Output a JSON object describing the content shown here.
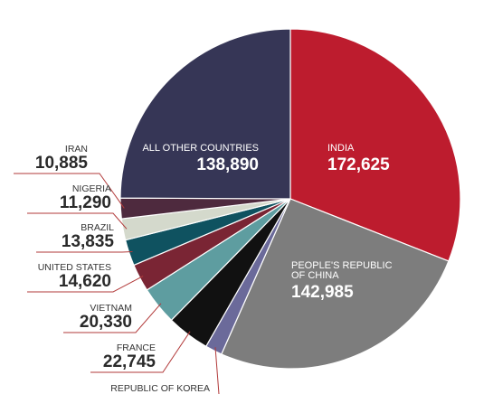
{
  "chart_data": {
    "type": "pie",
    "title": "",
    "slices": [
      {
        "label": "INDIA",
        "value": 172625,
        "display": "172,625",
        "color": "#bd1c2e"
      },
      {
        "label": "PEOPLE'S REPUBLIC OF CHINA",
        "label_lines": [
          "PEOPLE'S REPUBLIC",
          "OF CHINA"
        ],
        "value": 142985,
        "display": "142,985",
        "color": "#7d7d7d"
      },
      {
        "label": "REPUBLIC OF KOREA",
        "value": 0,
        "display": "",
        "color": "#6b6a9a"
      },
      {
        "label": "FRANCE",
        "value": 22745,
        "display": "22,745",
        "color": "#111111"
      },
      {
        "label": "VIETNAM",
        "value": 20330,
        "display": "20,330",
        "color": "#5e9da0"
      },
      {
        "label": "UNITED STATES",
        "value": 14620,
        "display": "14,620",
        "color": "#7a2534"
      },
      {
        "label": "BRAZIL",
        "value": 13835,
        "display": "13,835",
        "color": "#0f5260"
      },
      {
        "label": "NIGERIA",
        "value": 11290,
        "display": "11,290",
        "color": "#d4d9cc"
      },
      {
        "label": "IRAN",
        "value": 10885,
        "display": "10,885",
        "color": "#4e2a3e"
      },
      {
        "label": "ALL OTHER COUNTRIES",
        "value": 138890,
        "display": "138,890",
        "color": "#363656"
      }
    ]
  }
}
